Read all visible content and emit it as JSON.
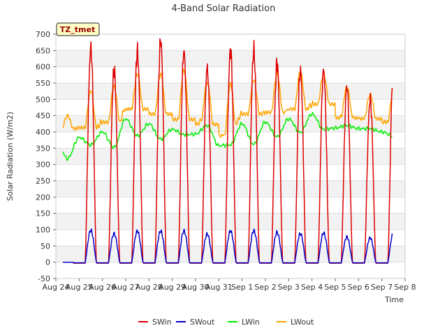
{
  "chart_data": {
    "type": "line",
    "title": "4-Band Solar Radiation",
    "xlabel": "Time",
    "ylabel": "Solar Radiation (W/m2)",
    "ylim": [
      -50,
      700
    ],
    "yticks": [
      -50,
      0,
      50,
      100,
      150,
      200,
      250,
      300,
      350,
      400,
      450,
      500,
      550,
      600,
      650,
      700
    ],
    "xlim_days": [
      0,
      15
    ],
    "xticks": [
      "Aug 24",
      "Aug 25",
      "Aug 26",
      "Aug 27",
      "Aug 28",
      "Aug 29",
      "Aug 30",
      "Aug 31",
      "Sep 1",
      "Sep 2",
      "Sep 3",
      "Sep 4",
      "Sep 5",
      "Sep 6",
      "Sep 7",
      "Sep 8"
    ],
    "grid": true,
    "station_label": "TZ_tmet",
    "legend_position": "bottom",
    "x_start": 0.3,
    "x_end": 14.45,
    "days": [
      {
        "date": "Aug 24",
        "lw_night": 380,
        "lw_day": 318
      },
      {
        "date": "Aug 25",
        "sw_peak": 658,
        "swout_peak": 98,
        "lwout_peak": 528,
        "lw_day": 360,
        "lw_night": 383
      },
      {
        "date": "Aug 26",
        "sw_peak": 592,
        "swout_peak": 88,
        "lwout_peak": 540,
        "lw_day": 352,
        "lw_night": 400
      },
      {
        "date": "Aug 27",
        "sw_peak": 650,
        "swout_peak": 96,
        "lwout_peak": 578,
        "lw_day": 388,
        "lw_night": 440
      },
      {
        "date": "Aug 28",
        "sw_peak": 682,
        "swout_peak": 96,
        "lwout_peak": 578,
        "lw_day": 378,
        "lw_night": 425
      },
      {
        "date": "Aug 29",
        "sw_peak": 648,
        "swout_peak": 96,
        "lwout_peak": 590,
        "lw_day": 392,
        "lw_night": 408
      },
      {
        "date": "Aug 30",
        "sw_peak": 598,
        "swout_peak": 87,
        "lwout_peak": 552,
        "lw_day": 420,
        "lw_night": 393
      },
      {
        "date": "Aug 31",
        "sw_peak": 652,
        "swout_peak": 96,
        "lwout_peak": 548,
        "lw_day": 360,
        "lw_night": 358
      },
      {
        "date": "Sep 1",
        "sw_peak": 650,
        "swout_peak": 97,
        "lwout_peak": 560,
        "lw_day": 362,
        "lw_night": 425
      },
      {
        "date": "Sep 2",
        "sw_peak": 615,
        "swout_peak": 92,
        "lwout_peak": 580,
        "lw_day": 385,
        "lw_night": 430
      },
      {
        "date": "Sep 3",
        "sw_peak": 588,
        "swout_peak": 88,
        "lwout_peak": 585,
        "lw_day": 398,
        "lw_night": 440
      },
      {
        "date": "Sep 4",
        "sw_peak": 590,
        "swout_peak": 90,
        "lwout_peak": 578,
        "lw_day": 408,
        "lw_night": 455
      },
      {
        "date": "Sep 5",
        "sw_peak": 540,
        "swout_peak": 78,
        "lwout_peak": 538,
        "lw_day": 420,
        "lw_night": 412
      },
      {
        "date": "Sep 6",
        "sw_peak": 500,
        "swout_peak": 75,
        "lwout_peak": 515,
        "lw_day": 410,
        "lw_night": 410
      },
      {
        "date": "Sep 7",
        "sw_peak": 605,
        "swout_peak": 90,
        "lwout_peak": 530,
        "lw_day": 388,
        "lw_night": 400
      }
    ],
    "series": [
      {
        "name": "SWin",
        "key": "sw_peak",
        "color": "#dd0000"
      },
      {
        "name": "SWout",
        "key": "swout_peak",
        "color": "#0000cc"
      },
      {
        "name": "LWin",
        "key": "lw",
        "color": "#00ee00"
      },
      {
        "name": "LWout",
        "key": "lwout",
        "color": "#ffa500"
      }
    ]
  }
}
